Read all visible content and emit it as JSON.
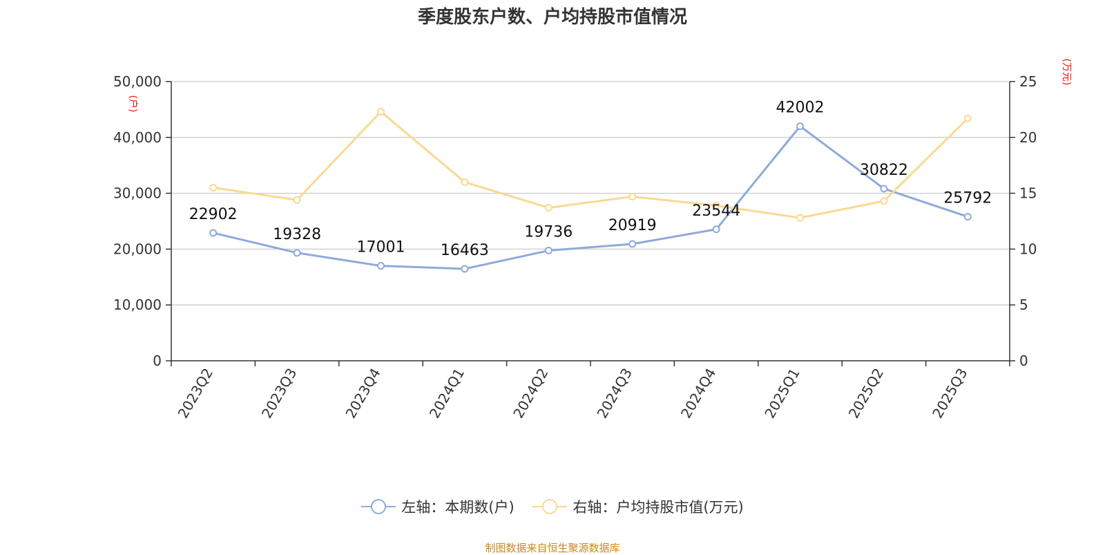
{
  "colors": {
    "left_series": "#8eaadb",
    "right_series": "#fad992",
    "unit": "#ee1111",
    "footer": "#c8871a"
  },
  "chart_data": {
    "type": "line",
    "title": "季度股东户数、户均持股市值情况",
    "categories": [
      "2023Q2",
      "2023Q3",
      "2023Q4",
      "2024Q1",
      "2024Q2",
      "2024Q3",
      "2024Q4",
      "2025Q1",
      "2025Q2",
      "2025Q3"
    ],
    "y_left": {
      "unit": "(户)",
      "range": [
        0,
        50000
      ],
      "ticks": [
        "0",
        "10,000",
        "20,000",
        "30,000",
        "40,000",
        "50,000"
      ],
      "tick_values": [
        0,
        10000,
        20000,
        30000,
        40000,
        50000
      ]
    },
    "y_right": {
      "unit": "(万元)",
      "range": [
        0,
        25
      ],
      "ticks": [
        "0",
        "5",
        "10",
        "15",
        "20",
        "25"
      ],
      "tick_values": [
        0,
        5,
        10,
        15,
        20,
        25
      ]
    },
    "series": [
      {
        "name": "左轴：本期数(户)",
        "axis": "left",
        "values": [
          22902,
          19328,
          17001,
          16463,
          19736,
          20919,
          23544,
          42002,
          30822,
          25792
        ],
        "labels": [
          "22902",
          "19328",
          "17001",
          "16463",
          "19736",
          "20919",
          "23544",
          "42002",
          "30822",
          "25792"
        ]
      },
      {
        "name": "右轴：户均持股市值(万元)",
        "axis": "right",
        "values": [
          15.5,
          14.4,
          22.3,
          16.0,
          13.7,
          14.7,
          13.9,
          12.8,
          14.3,
          21.7
        ]
      }
    ],
    "grid": true,
    "legend": "bottom-center"
  },
  "footer": "制图数据来自恒生聚源数据库"
}
